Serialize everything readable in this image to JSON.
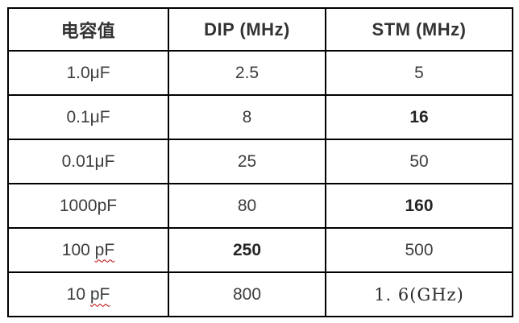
{
  "page": {
    "background_color": "#ffffff",
    "border_color": "#000000",
    "header_text_color": "#333333",
    "cell_text_color": "#3d3d3d",
    "spellcheck_squiggle_color": "#c00000"
  },
  "table": {
    "headers": {
      "capacitance": "电容值",
      "dip": "DIP (MHz)",
      "stm": "STM (MHz)"
    },
    "rows": [
      {
        "cap": "1.0μF",
        "dip": "2.5",
        "stm": "5"
      },
      {
        "cap": "0.1μF",
        "dip": "8",
        "stm": "16"
      },
      {
        "cap": "0.01μF",
        "dip": "25",
        "stm": "50"
      },
      {
        "cap": "1000pF",
        "dip": "80",
        "stm": "160"
      },
      {
        "cap_prefix": "100 ",
        "cap_squiggle": "pF",
        "dip": "250",
        "stm": "500"
      },
      {
        "cap_prefix": "10 ",
        "cap_squiggle": "pF",
        "dip": "800",
        "stm": "1. 6(GHz)"
      }
    ]
  }
}
